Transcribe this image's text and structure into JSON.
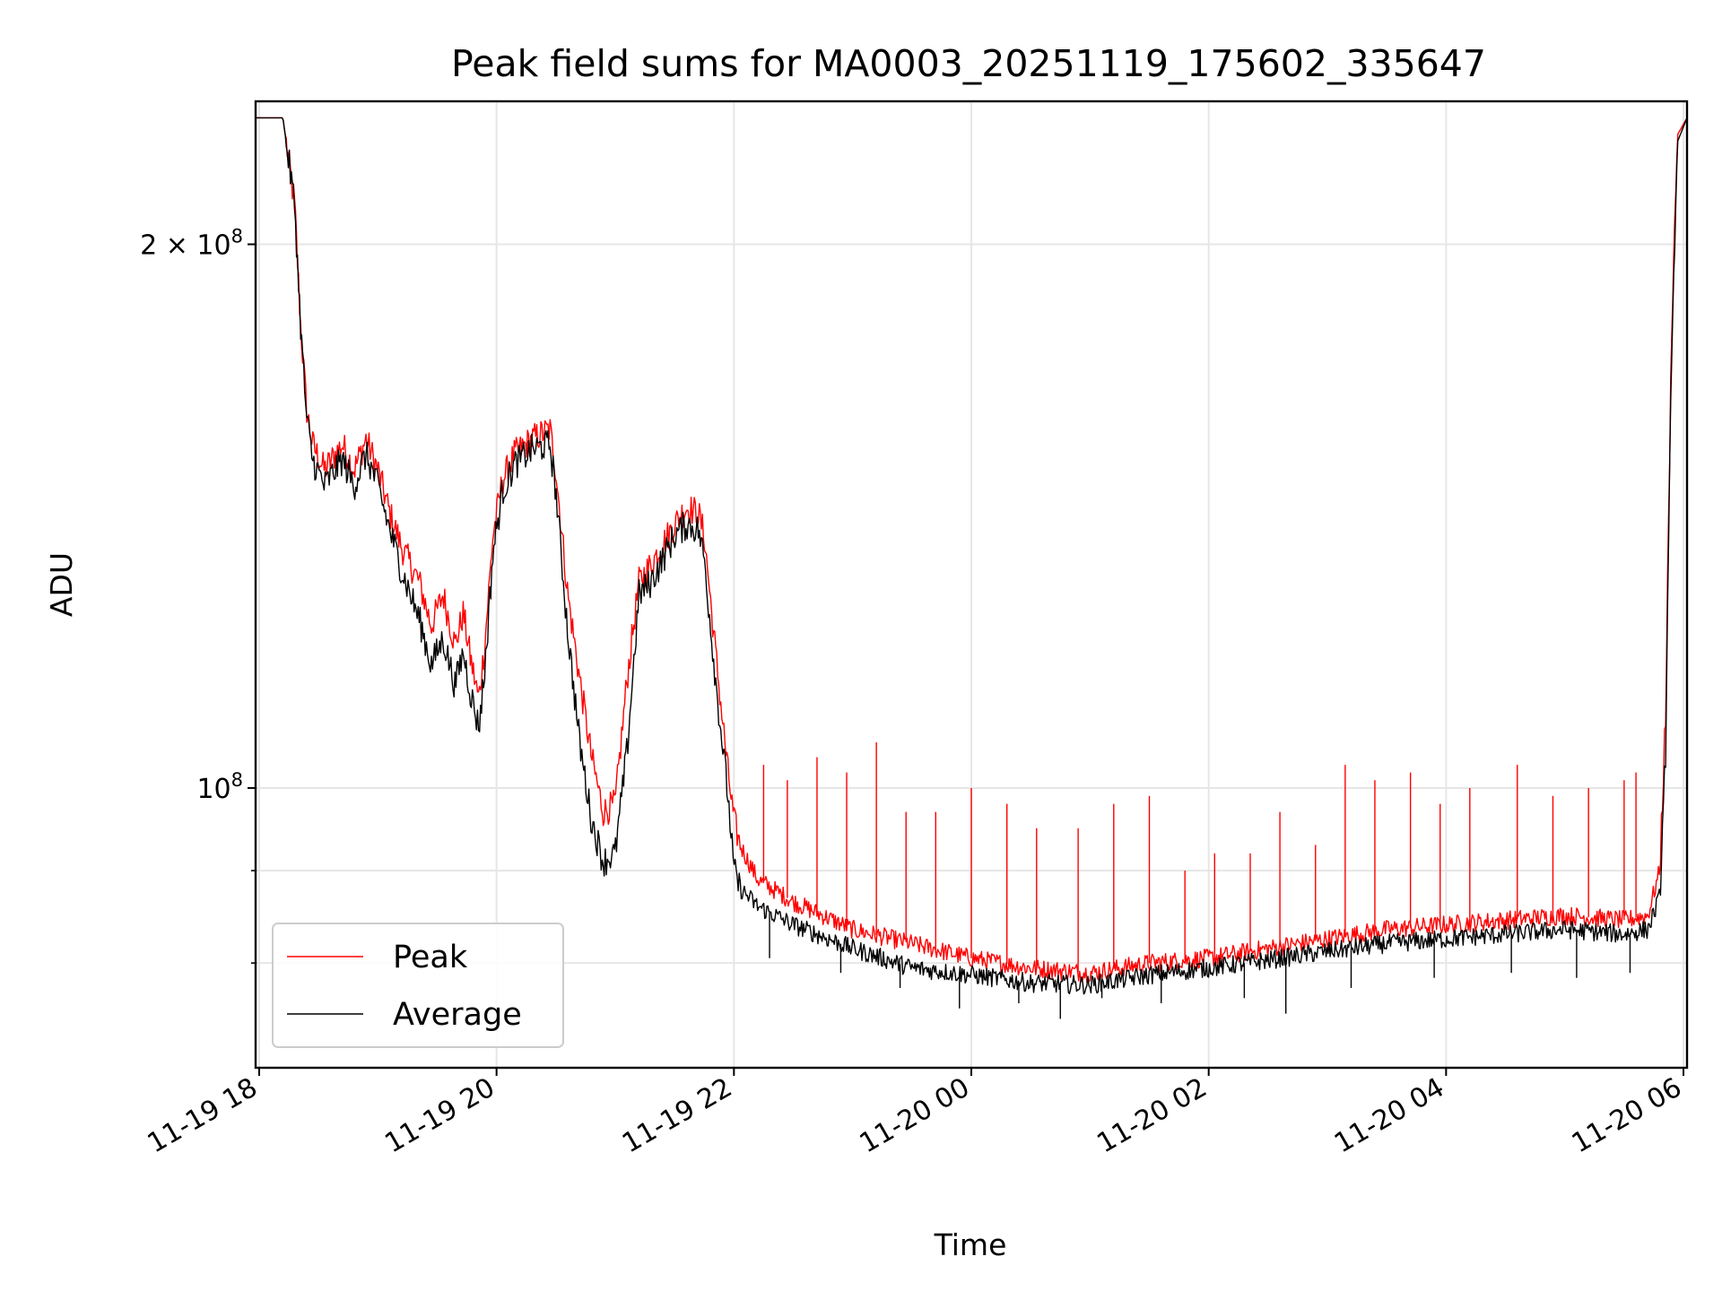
{
  "chart_data": {
    "type": "line",
    "title": "Peak field sums for MA0003_20251119_175602_335647",
    "xlabel": "Time",
    "ylabel": "ADU",
    "yscale": "log",
    "ylim": [
      70000000,
      240000000
    ],
    "xlim_hours": [
      17.97,
      30.03
    ],
    "grid": true,
    "legend_position": "lower-left",
    "x_ticks": [
      {
        "label": "11-19 18",
        "hour": 18
      },
      {
        "label": "11-19 20",
        "hour": 20
      },
      {
        "label": "11-19 22",
        "hour": 22
      },
      {
        "label": "11-20 00",
        "hour": 24
      },
      {
        "label": "11-20 02",
        "hour": 26
      },
      {
        "label": "11-20 04",
        "hour": 28
      },
      {
        "label": "11-20 06",
        "hour": 30
      }
    ],
    "y_major_ticks": [
      {
        "mantissa": "2 × 10",
        "exponent": "8",
        "value": 200000000
      },
      {
        "mantissa": "10",
        "exponent": "8",
        "value": 100000000
      }
    ],
    "y_minor_ticks": [
      90000000,
      80000000
    ],
    "series": [
      {
        "name": "Peak",
        "color": "#ff0000",
        "x_hours": [
          17.97,
          18.2,
          18.3,
          18.35,
          18.4,
          18.45,
          18.55,
          18.7,
          18.8,
          18.9,
          19.0,
          19.1,
          19.2,
          19.35,
          19.45,
          19.55,
          19.65,
          19.72,
          19.78,
          19.85,
          19.9,
          19.97,
          20.05,
          20.15,
          20.3,
          20.45,
          20.5,
          20.6,
          20.7,
          20.8,
          20.9,
          21.0,
          21.1,
          21.2,
          21.3,
          21.5,
          21.6,
          21.7,
          21.75,
          21.85,
          21.95,
          22.0,
          22.05,
          22.2,
          22.5,
          23.0,
          23.5,
          24.0,
          24.5,
          25.0,
          25.5,
          26.0,
          26.5,
          27.0,
          27.5,
          28.0,
          28.5,
          29.0,
          29.5,
          29.7,
          29.8,
          29.85,
          29.9,
          29.95,
          30.03
        ],
        "values": [
          235000000,
          235000000,
          210000000,
          180000000,
          162000000,
          155000000,
          150000000,
          155000000,
          150000000,
          156000000,
          150000000,
          142000000,
          136000000,
          130000000,
          123000000,
          128000000,
          120000000,
          125000000,
          118000000,
          112000000,
          120000000,
          138000000,
          148000000,
          153000000,
          156000000,
          158000000,
          150000000,
          128000000,
          115000000,
          104000000,
          97000000,
          98000000,
          115000000,
          130000000,
          133000000,
          140000000,
          143000000,
          142000000,
          138000000,
          118000000,
          102000000,
          96000000,
          93000000,
          89000000,
          86500000,
          83500000,
          82000000,
          80500000,
          79500000,
          79000000,
          80000000,
          80500000,
          81500000,
          82500000,
          83500000,
          84000000,
          84500000,
          85000000,
          84500000,
          85000000,
          90000000,
          110000000,
          180000000,
          230000000,
          235000000
        ],
        "spikes": [
          {
            "hour": 22.25,
            "value": 103000000
          },
          {
            "hour": 22.45,
            "value": 101000000
          },
          {
            "hour": 22.7,
            "value": 104000000
          },
          {
            "hour": 22.95,
            "value": 102000000
          },
          {
            "hour": 23.2,
            "value": 106000000
          },
          {
            "hour": 23.45,
            "value": 97000000
          },
          {
            "hour": 23.7,
            "value": 97000000
          },
          {
            "hour": 24.0,
            "value": 100000000
          },
          {
            "hour": 24.3,
            "value": 98000000
          },
          {
            "hour": 24.55,
            "value": 95000000
          },
          {
            "hour": 24.9,
            "value": 95000000
          },
          {
            "hour": 25.2,
            "value": 98000000
          },
          {
            "hour": 25.5,
            "value": 99000000
          },
          {
            "hour": 25.8,
            "value": 90000000
          },
          {
            "hour": 26.05,
            "value": 92000000
          },
          {
            "hour": 26.35,
            "value": 92000000
          },
          {
            "hour": 26.6,
            "value": 97000000
          },
          {
            "hour": 26.9,
            "value": 93000000
          },
          {
            "hour": 27.15,
            "value": 103000000
          },
          {
            "hour": 27.4,
            "value": 101000000
          },
          {
            "hour": 27.7,
            "value": 102000000
          },
          {
            "hour": 27.95,
            "value": 98000000
          },
          {
            "hour": 28.2,
            "value": 100000000
          },
          {
            "hour": 28.6,
            "value": 103000000
          },
          {
            "hour": 28.9,
            "value": 99000000
          },
          {
            "hour": 29.2,
            "value": 100000000
          },
          {
            "hour": 29.5,
            "value": 101000000
          },
          {
            "hour": 29.6,
            "value": 102000000
          }
        ]
      },
      {
        "name": "Average",
        "color": "#000000",
        "x_hours": [
          17.97,
          18.2,
          18.3,
          18.35,
          18.4,
          18.45,
          18.55,
          18.7,
          18.8,
          18.9,
          19.0,
          19.1,
          19.2,
          19.35,
          19.45,
          19.55,
          19.65,
          19.72,
          19.78,
          19.85,
          19.9,
          19.97,
          20.05,
          20.15,
          20.3,
          20.45,
          20.5,
          20.6,
          20.7,
          20.8,
          20.9,
          21.0,
          21.1,
          21.2,
          21.3,
          21.5,
          21.6,
          21.7,
          21.75,
          21.85,
          21.95,
          22.0,
          22.05,
          22.2,
          22.5,
          23.0,
          23.5,
          24.0,
          24.5,
          25.0,
          25.5,
          26.0,
          26.5,
          27.0,
          27.5,
          28.0,
          28.5,
          29.0,
          29.5,
          29.7,
          29.8,
          29.85,
          29.9,
          29.95,
          30.03
        ],
        "values": [
          235000000,
          235000000,
          210000000,
          180000000,
          160000000,
          152000000,
          147000000,
          152000000,
          147000000,
          153000000,
          147000000,
          139000000,
          132000000,
          124000000,
          117000000,
          121000000,
          114000000,
          119000000,
          113000000,
          108000000,
          116000000,
          135000000,
          146000000,
          151000000,
          154000000,
          155000000,
          146000000,
          122000000,
          106000000,
          96000000,
          91000000,
          92000000,
          105000000,
          128000000,
          130000000,
          138000000,
          140000000,
          139000000,
          134000000,
          114000000,
          99000000,
          90000000,
          88000000,
          86000000,
          84000000,
          81500000,
          79500000,
          78800000,
          78000000,
          77800000,
          78800000,
          79500000,
          80300000,
          81200000,
          82000000,
          82500000,
          83000000,
          83500000,
          83000000,
          83500000,
          87000000,
          105000000,
          175000000,
          228000000,
          235000000
        ],
        "spikes": [
          {
            "hour": 22.3,
            "value": 80500000
          },
          {
            "hour": 22.9,
            "value": 79000000
          },
          {
            "hour": 23.4,
            "value": 77500000
          },
          {
            "hour": 23.9,
            "value": 75500000
          },
          {
            "hour": 24.4,
            "value": 76000000
          },
          {
            "hour": 24.75,
            "value": 74500000
          },
          {
            "hour": 25.1,
            "value": 76500000
          },
          {
            "hour": 25.6,
            "value": 76000000
          },
          {
            "hour": 26.3,
            "value": 76500000
          },
          {
            "hour": 26.65,
            "value": 75000000
          },
          {
            "hour": 27.2,
            "value": 77500000
          },
          {
            "hour": 27.9,
            "value": 78500000
          },
          {
            "hour": 28.55,
            "value": 79000000
          },
          {
            "hour": 29.1,
            "value": 78500000
          },
          {
            "hour": 29.55,
            "value": 79000000
          }
        ]
      }
    ]
  }
}
